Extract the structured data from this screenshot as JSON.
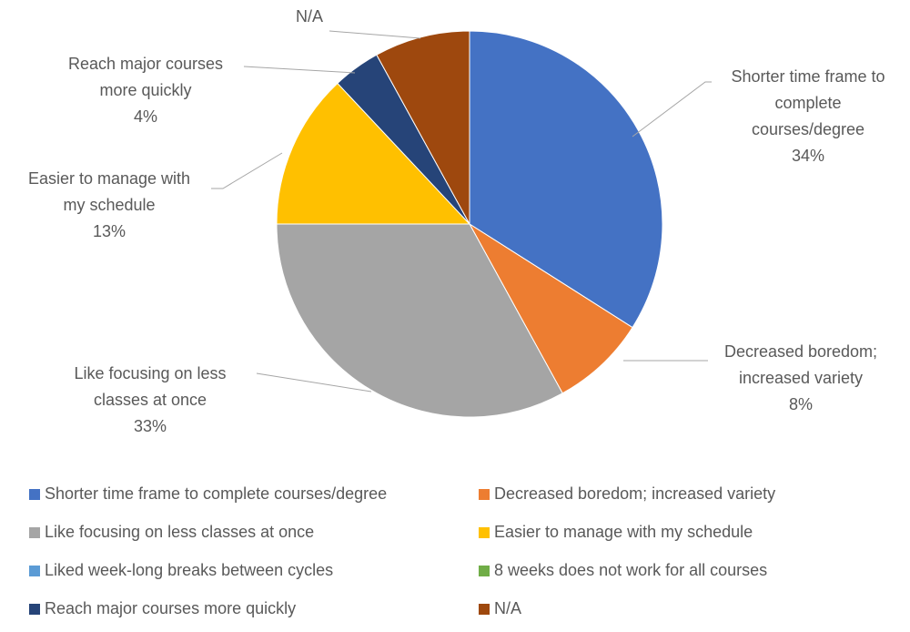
{
  "chart_data": {
    "type": "pie",
    "categories": [
      "Shorter time frame to complete courses/degree",
      "Decreased boredom; increased variety",
      "Like focusing on less classes at once",
      "Easier to manage with my schedule",
      "Liked week-long breaks between cycles",
      "8 weeks does not work for all courses",
      "Reach major courses more quickly",
      "N/A"
    ],
    "values": [
      34,
      8,
      33,
      13,
      0,
      0,
      4,
      8
    ],
    "value_labels": [
      "34%",
      "8%",
      "33%",
      "13%",
      null,
      null,
      "4%",
      null
    ],
    "colors": [
      "#4472c4",
      "#ed7d31",
      "#a5a5a5",
      "#ffc000",
      "#5b9bd5",
      "#70ad47",
      "#264478",
      "#9e480e"
    ],
    "legend": "bottom"
  }
}
